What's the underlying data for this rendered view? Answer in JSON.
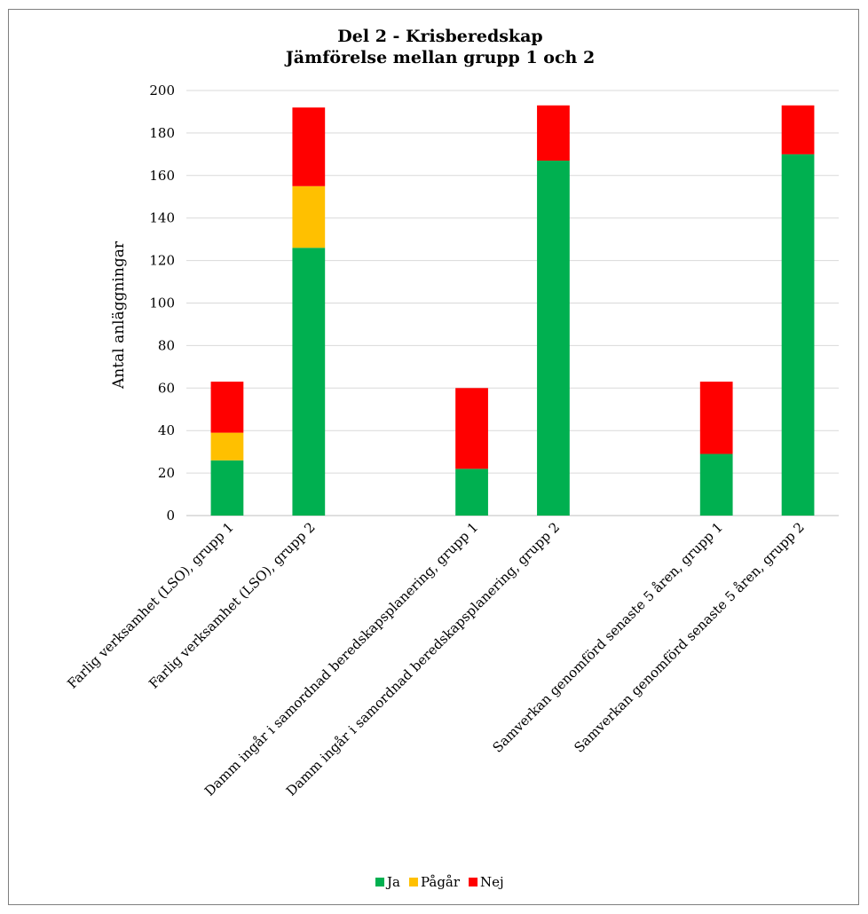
{
  "chart_data": {
    "type": "bar",
    "stacked": true,
    "title": "Del 2 - Krisberedskap",
    "subtitle": "Jämförelse mellan grupp 1 och 2",
    "xlabel": "",
    "ylabel": "Antal anläggningar",
    "ylim": [
      0,
      200
    ],
    "yticks": [
      0,
      20,
      40,
      60,
      80,
      100,
      120,
      140,
      160,
      180,
      200
    ],
    "grid": true,
    "legend_position": "bottom",
    "categories": [
      "Farlig verksamhet (LSO), grupp 1",
      "Farlig verksamhet (LSO), grupp 2",
      "",
      "Damm ingår i samordnad beredskapsplanering, grupp 1",
      "Damm ingår i samordnad beredskapsplanering, grupp 2",
      "",
      "Samverkan genomförd senaste 5 åren, grupp 1",
      "Samverkan genomförd senaste 5 åren, grupp 2"
    ],
    "series": [
      {
        "name": "Ja",
        "color": "#00b050",
        "values": [
          26,
          126,
          null,
          22,
          167,
          null,
          29,
          170
        ]
      },
      {
        "name": "Pågår",
        "color": "#ffc000",
        "values": [
          13,
          29,
          null,
          0,
          0,
          null,
          0,
          0
        ]
      },
      {
        "name": "Nej",
        "color": "#ff0000",
        "values": [
          24,
          37,
          null,
          38,
          26,
          null,
          34,
          23
        ]
      }
    ]
  }
}
